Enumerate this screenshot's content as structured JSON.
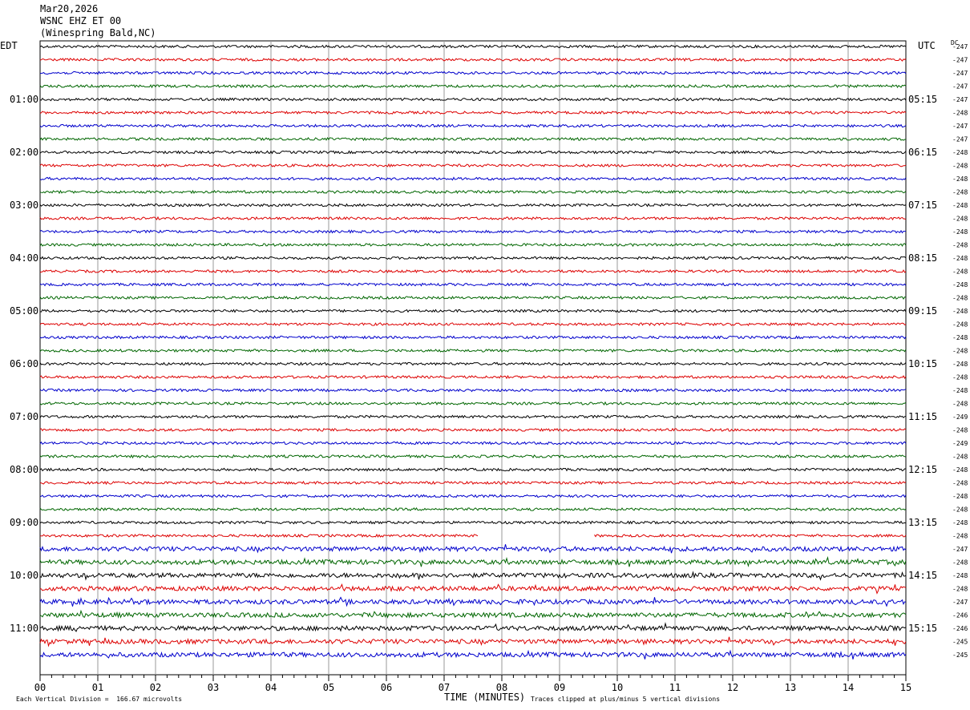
{
  "header": {
    "date": "Mar20,2026",
    "channel": "WSNC EHZ ET 00",
    "station": "(Winespring Bald,NC)"
  },
  "left_tz": "EDT",
  "right_tz": "UTC",
  "dc_label": "DC",
  "footer": {
    "scale": "Each Vertical Division =  166.67 microvolts",
    "clip": "Traces clipped at plus/minus 5 vertical divisions"
  },
  "chart_data": {
    "type": "line",
    "title": "WSNC EHZ ET 00",
    "xlabel": "TIME (MINUTES)",
    "xlim": [
      0,
      15
    ],
    "x_ticks": [
      "00",
      "01",
      "02",
      "03",
      "04",
      "05",
      "06",
      "07",
      "08",
      "09",
      "10",
      "11",
      "12",
      "13",
      "14",
      "15"
    ],
    "trace_minutes": 15,
    "trace_colors": [
      "#000000",
      "#dd0000",
      "#0000cc",
      "#006600"
    ],
    "left_hour_labels": [
      "01:00",
      "02:00",
      "03:00",
      "04:00",
      "05:00",
      "06:00",
      "07:00",
      "08:00",
      "09:00",
      "10:00",
      "11:00"
    ],
    "right_hour_labels": [
      "05:15",
      "06:15",
      "07:15",
      "08:15",
      "09:15",
      "10:15",
      "11:15",
      "12:15",
      "13:15",
      "14:15",
      "15:15"
    ],
    "dc_offsets": [
      "-247",
      "-247",
      "-247",
      "-247",
      "-247",
      "-248",
      "-247",
      "-247",
      "-248",
      "-248",
      "-248",
      "-248",
      "-248",
      "-248",
      "-248",
      "-248",
      "-248",
      "-248",
      "-248",
      "-248",
      "-248",
      "-248",
      "-248",
      "-248",
      "-248",
      "-248",
      "-248",
      "-248",
      "-249",
      "-248",
      "-249",
      "-248",
      "-248",
      "-248",
      "-248",
      "-248",
      "-248",
      "-248",
      "-247",
      "-248",
      "-248",
      "-248",
      "-247",
      "-246",
      "-246",
      "-245",
      "-245"
    ],
    "gaps": [
      {
        "trace": 37,
        "from_minute": 7.6,
        "to_minute": 9.6
      }
    ],
    "grid": true
  }
}
